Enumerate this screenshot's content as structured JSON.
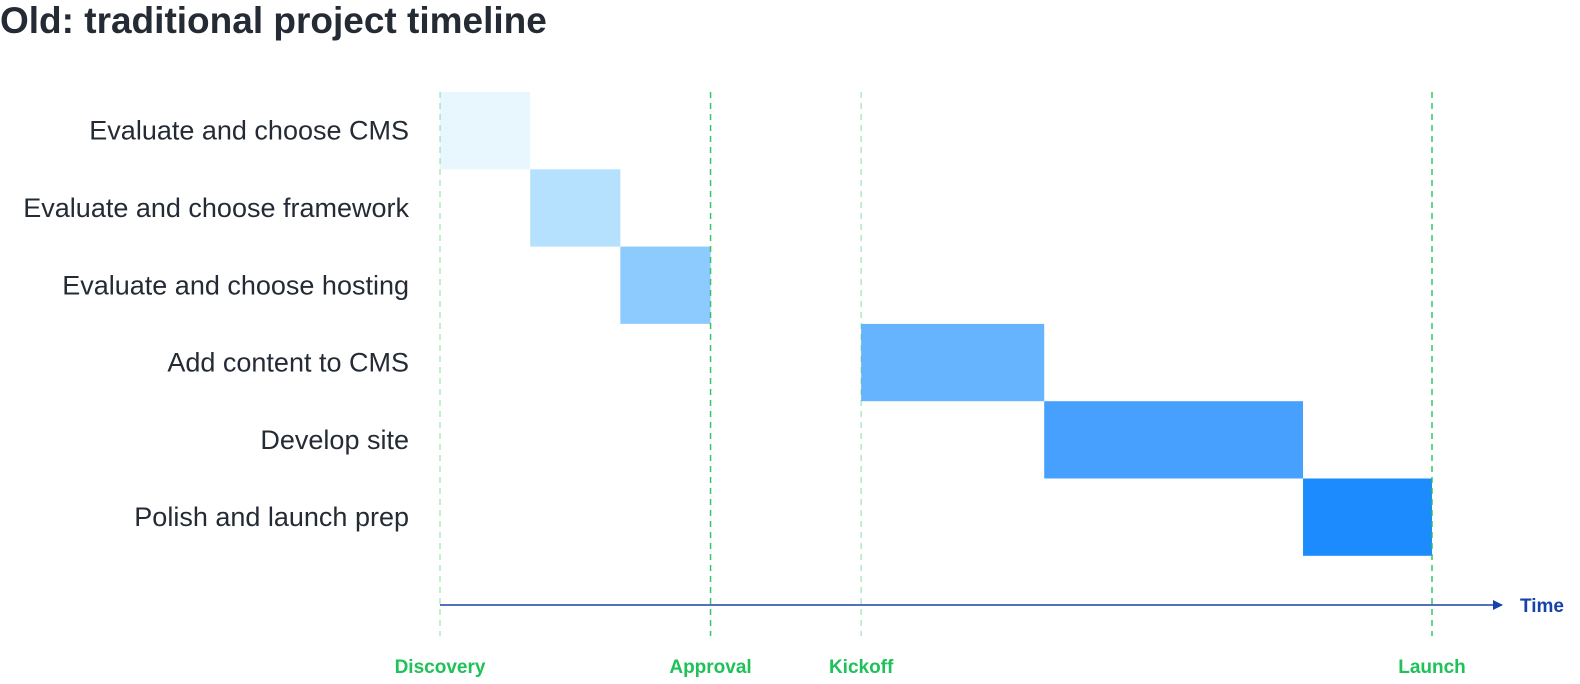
{
  "chart_data": {
    "type": "bar",
    "title": "Old: traditional project timeline",
    "xlabel": "Time",
    "ylabel": "",
    "xlim": [
      0,
      11
    ],
    "tasks": [
      {
        "label": "Evaluate and choose CMS",
        "start": 0,
        "end": 1,
        "color": "#e8f6fe"
      },
      {
        "label": "Evaluate and choose framework",
        "start": 1,
        "end": 2,
        "color": "#b5e0fe"
      },
      {
        "label": "Evaluate and choose hosting",
        "start": 2,
        "end": 3,
        "color": "#8dcbfe"
      },
      {
        "label": "Add content to CMS",
        "start": 4.67,
        "end": 6.7,
        "color": "#67b4fe"
      },
      {
        "label": "Develop site",
        "start": 6.7,
        "end": 9.57,
        "color": "#47a0fd"
      },
      {
        "label": "Polish and launch prep",
        "start": 9.57,
        "end": 11,
        "color": "#1b8bfd"
      }
    ],
    "milestones": [
      {
        "label": "Discovery",
        "x": 0
      },
      {
        "label": "Approval",
        "x": 3
      },
      {
        "label": "Kickoff",
        "x": 4.67
      },
      {
        "label": "Launch",
        "x": 11
      }
    ],
    "milestone_color": "#1fc159",
    "axis_color": "#1742a8",
    "grid": false
  }
}
